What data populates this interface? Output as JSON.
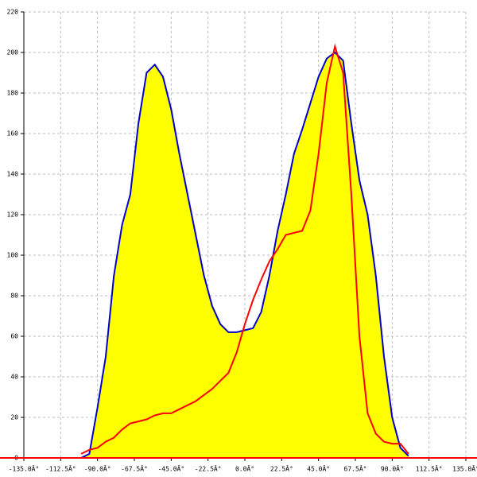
{
  "chart_data": {
    "type": "area-line",
    "x": [
      -100,
      -95,
      -90,
      -85,
      -80,
      -75,
      -70,
      -65,
      -60,
      -55,
      -50,
      -45,
      -40,
      -35,
      -30,
      -25,
      -20,
      -15,
      -10,
      -5,
      0,
      5,
      10,
      15,
      20,
      25,
      30,
      35,
      40,
      45,
      50,
      55,
      60,
      65,
      70,
      75,
      80,
      85,
      90,
      95,
      100
    ],
    "series": [
      {
        "kind": "area",
        "color": "#0000cc",
        "fill": "#ffff00",
        "values": [
          0,
          2,
          25,
          50,
          90,
          115,
          130,
          165,
          190,
          194,
          188,
          172,
          150,
          130,
          110,
          90,
          75,
          66,
          62,
          62,
          63,
          64,
          72,
          90,
          112,
          130,
          150,
          162,
          175,
          188,
          197,
          200,
          196,
          165,
          137,
          120,
          90,
          50,
          20,
          5,
          1
        ]
      },
      {
        "kind": "line",
        "color": "#ff0000",
        "values": [
          2,
          4,
          5,
          8,
          10,
          14,
          17,
          18,
          19,
          21,
          22,
          22,
          24,
          26,
          28,
          31,
          34,
          38,
          42,
          52,
          66,
          78,
          88,
          97,
          103,
          110,
          111,
          112,
          122,
          150,
          185,
          203,
          190,
          130,
          60,
          22,
          12,
          8,
          7,
          7,
          2
        ]
      }
    ],
    "xlim": [
      -135,
      135
    ],
    "ylim": [
      0,
      220
    ],
    "xticks": [
      {
        "value": -135,
        "label": "-135.0Â°"
      },
      {
        "value": -112.5,
        "label": "-112.5Â°"
      },
      {
        "value": -90,
        "label": "-90.0Â°"
      },
      {
        "value": -67.5,
        "label": "-67.5Â°"
      },
      {
        "value": -45,
        "label": "-45.0Â°"
      },
      {
        "value": -22.5,
        "label": "-22.5Â°"
      },
      {
        "value": 0,
        "label": "0.0Â°"
      },
      {
        "value": 22.5,
        "label": "22.5Â°"
      },
      {
        "value": 45,
        "label": "45.0Â°"
      },
      {
        "value": 67.5,
        "label": "67.5Â°"
      },
      {
        "value": 90,
        "label": "90.0Â°"
      },
      {
        "value": 112.5,
        "label": "112.5Â°"
      },
      {
        "value": 135,
        "label": "135.0Â°"
      }
    ],
    "yticks": [
      0,
      20,
      40,
      60,
      80,
      100,
      120,
      140,
      160,
      180,
      200,
      220
    ],
    "grid": true
  }
}
